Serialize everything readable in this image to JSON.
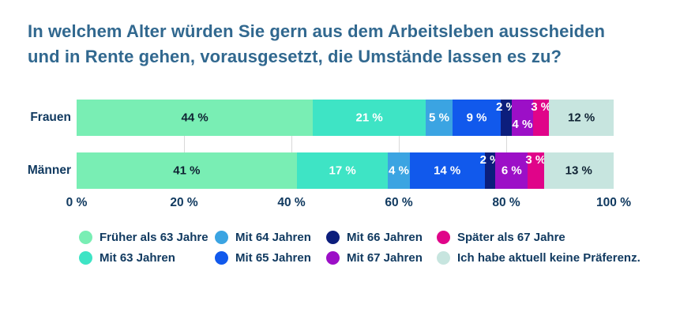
{
  "title": {
    "line1": "In welchem Alter würden Sie gern aus dem Arbeitsleben ausscheiden",
    "line2": "und in Rente gehen, vorausgesetzt, die Umstände lassen es zu?"
  },
  "colors": {
    "title_text": "#31688F",
    "label_text": "#113A60",
    "value_dark": "#0F2233",
    "value_light": "#FFFFFF",
    "gridline": "#D9D9D9",
    "background": "#FFFFFF"
  },
  "chart_data": {
    "type": "bar",
    "orientation": "horizontal_stacked",
    "unit": "%",
    "value_suffix": " %",
    "categories": [
      "Frauen",
      "Männer"
    ],
    "series": [
      {
        "name": "Früher als 63 Jahre",
        "color": "#79EEB4",
        "dark_label": true,
        "values": [
          44,
          41
        ]
      },
      {
        "name": "Mit 63 Jahren",
        "color": "#3EE4C5",
        "dark_label": false,
        "values": [
          21,
          17
        ]
      },
      {
        "name": "Mit 64 Jahren",
        "color": "#3BA4E2",
        "dark_label": false,
        "values": [
          5,
          4
        ]
      },
      {
        "name": "Mit 65 Jahren",
        "color": "#1159EC",
        "dark_label": false,
        "values": [
          9,
          14
        ]
      },
      {
        "name": "Mit 66 Jahren",
        "color": "#0C1E7C",
        "dark_label": false,
        "values": [
          2,
          2
        ]
      },
      {
        "name": "Mit 67 Jahren",
        "color": "#9C0FC7",
        "dark_label": false,
        "values": [
          4,
          6
        ]
      },
      {
        "name": "Später als 67 Jahre",
        "color": "#E00489",
        "dark_label": false,
        "values": [
          3,
          3
        ]
      },
      {
        "name": "Ich habe aktuell keine Präferenz.",
        "color": "#C7E5DF",
        "dark_label": true,
        "values": [
          12,
          13
        ]
      }
    ],
    "label_positions": [
      [
        "center",
        "center",
        "center",
        "center",
        "top",
        "low",
        "top",
        "center"
      ],
      [
        "center",
        "center",
        "center",
        "center",
        "top",
        "center",
        "top",
        "center"
      ]
    ],
    "x_ticks": [
      "0 %",
      "20 %",
      "40 %",
      "60 %",
      "80 %",
      "100 %"
    ],
    "x_tick_values": [
      0,
      20,
      40,
      60,
      80,
      100
    ],
    "xlim": [
      0,
      100
    ],
    "gridlines_at": [
      20,
      40,
      60,
      80
    ],
    "legend_position": "bottom",
    "legend_columns": 4
  }
}
